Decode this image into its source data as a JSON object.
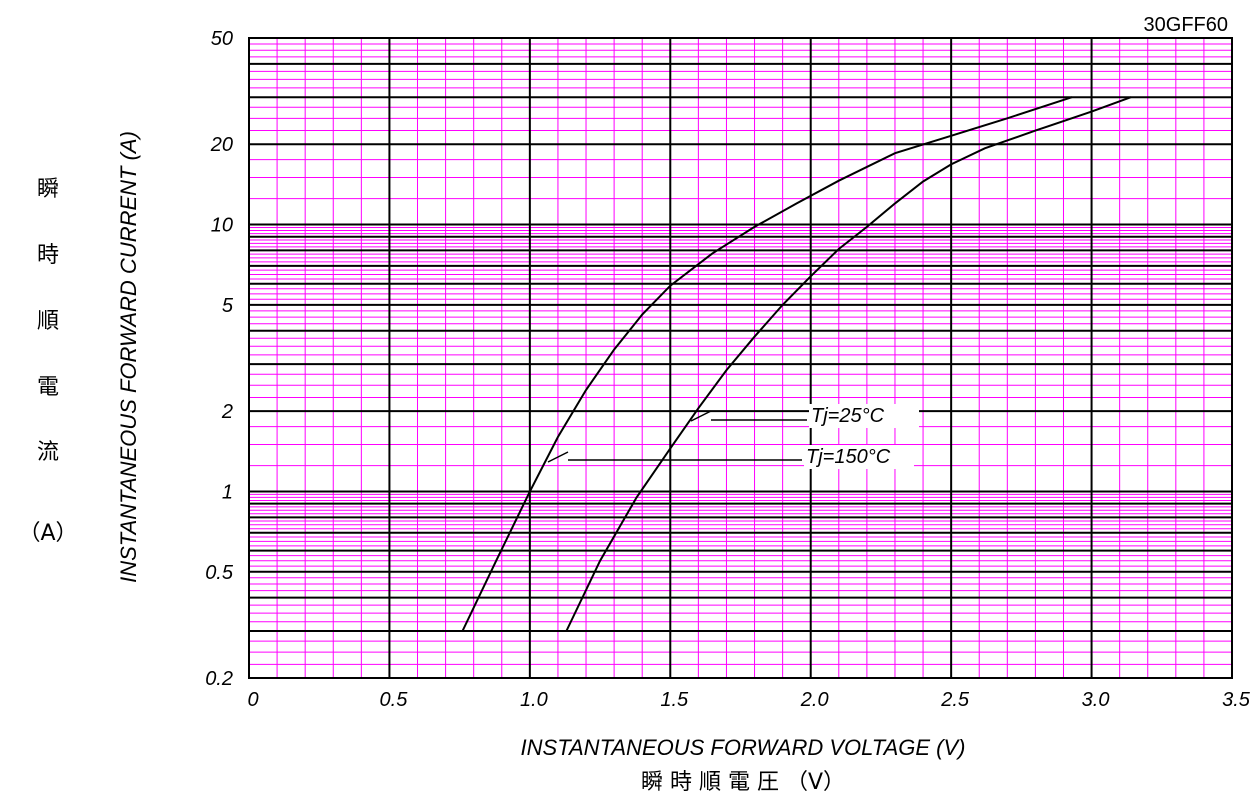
{
  "chart_data": {
    "type": "line",
    "part_number": "30GFF60",
    "xlabel": "INSTANTANEOUS FORWARD VOLTAGE (V)",
    "xlabel_jp": "瞬 時 順 電 圧 （V）",
    "ylabel": "INSTANTANEOUS FORWARD CURRENT (A)",
    "ylabel_jp": [
      "瞬",
      "時",
      "順",
      "電",
      "流"
    ],
    "ylabel_jp_unit": "（A）",
    "x_scale": "linear",
    "y_scale": "log",
    "xlim": [
      0,
      3.5
    ],
    "ylim": [
      0.2,
      50
    ],
    "x_ticks": [
      0,
      0.5,
      1.0,
      1.5,
      2.0,
      2.5,
      3.0,
      3.5
    ],
    "x_tick_labels": [
      "0",
      "0.5",
      "1.0",
      "1.5",
      "2.0",
      "2.5",
      "3.0",
      "3.5"
    ],
    "y_ticks": [
      0.2,
      0.5,
      1,
      2,
      5,
      10,
      20,
      50
    ],
    "y_tick_labels": [
      "0.2",
      "0.5",
      "1",
      "2",
      "5",
      "10",
      "20",
      "50"
    ],
    "grid": "on",
    "colors": {
      "minor_grid": "#ff00ff",
      "major_grid": "#000000",
      "curve": "#000000"
    },
    "series": [
      {
        "name": "Tj=150°C",
        "x": [
          0.76,
          0.88,
          1.0,
          1.1,
          1.2,
          1.3,
          1.4,
          1.5,
          1.65,
          1.8,
          1.95,
          2.1,
          2.3,
          2.5,
          2.7,
          2.93
        ],
        "y": [
          0.3,
          0.55,
          1.0,
          1.6,
          2.4,
          3.4,
          4.6,
          5.9,
          7.8,
          9.8,
          12,
          14.6,
          18.5,
          21.5,
          25,
          30
        ]
      },
      {
        "name": "Tj=25°C",
        "x": [
          1.13,
          1.25,
          1.38,
          1.5,
          1.6,
          1.7,
          1.8,
          1.9,
          2.0,
          2.1,
          2.2,
          2.3,
          2.4,
          2.5,
          2.62,
          2.8,
          3.0,
          3.14
        ],
        "y": [
          0.3,
          0.55,
          0.95,
          1.45,
          2.05,
          2.85,
          3.8,
          5.0,
          6.4,
          8.1,
          9.8,
          12,
          14.5,
          16.8,
          19.3,
          22.5,
          26.5,
          30
        ]
      }
    ]
  }
}
